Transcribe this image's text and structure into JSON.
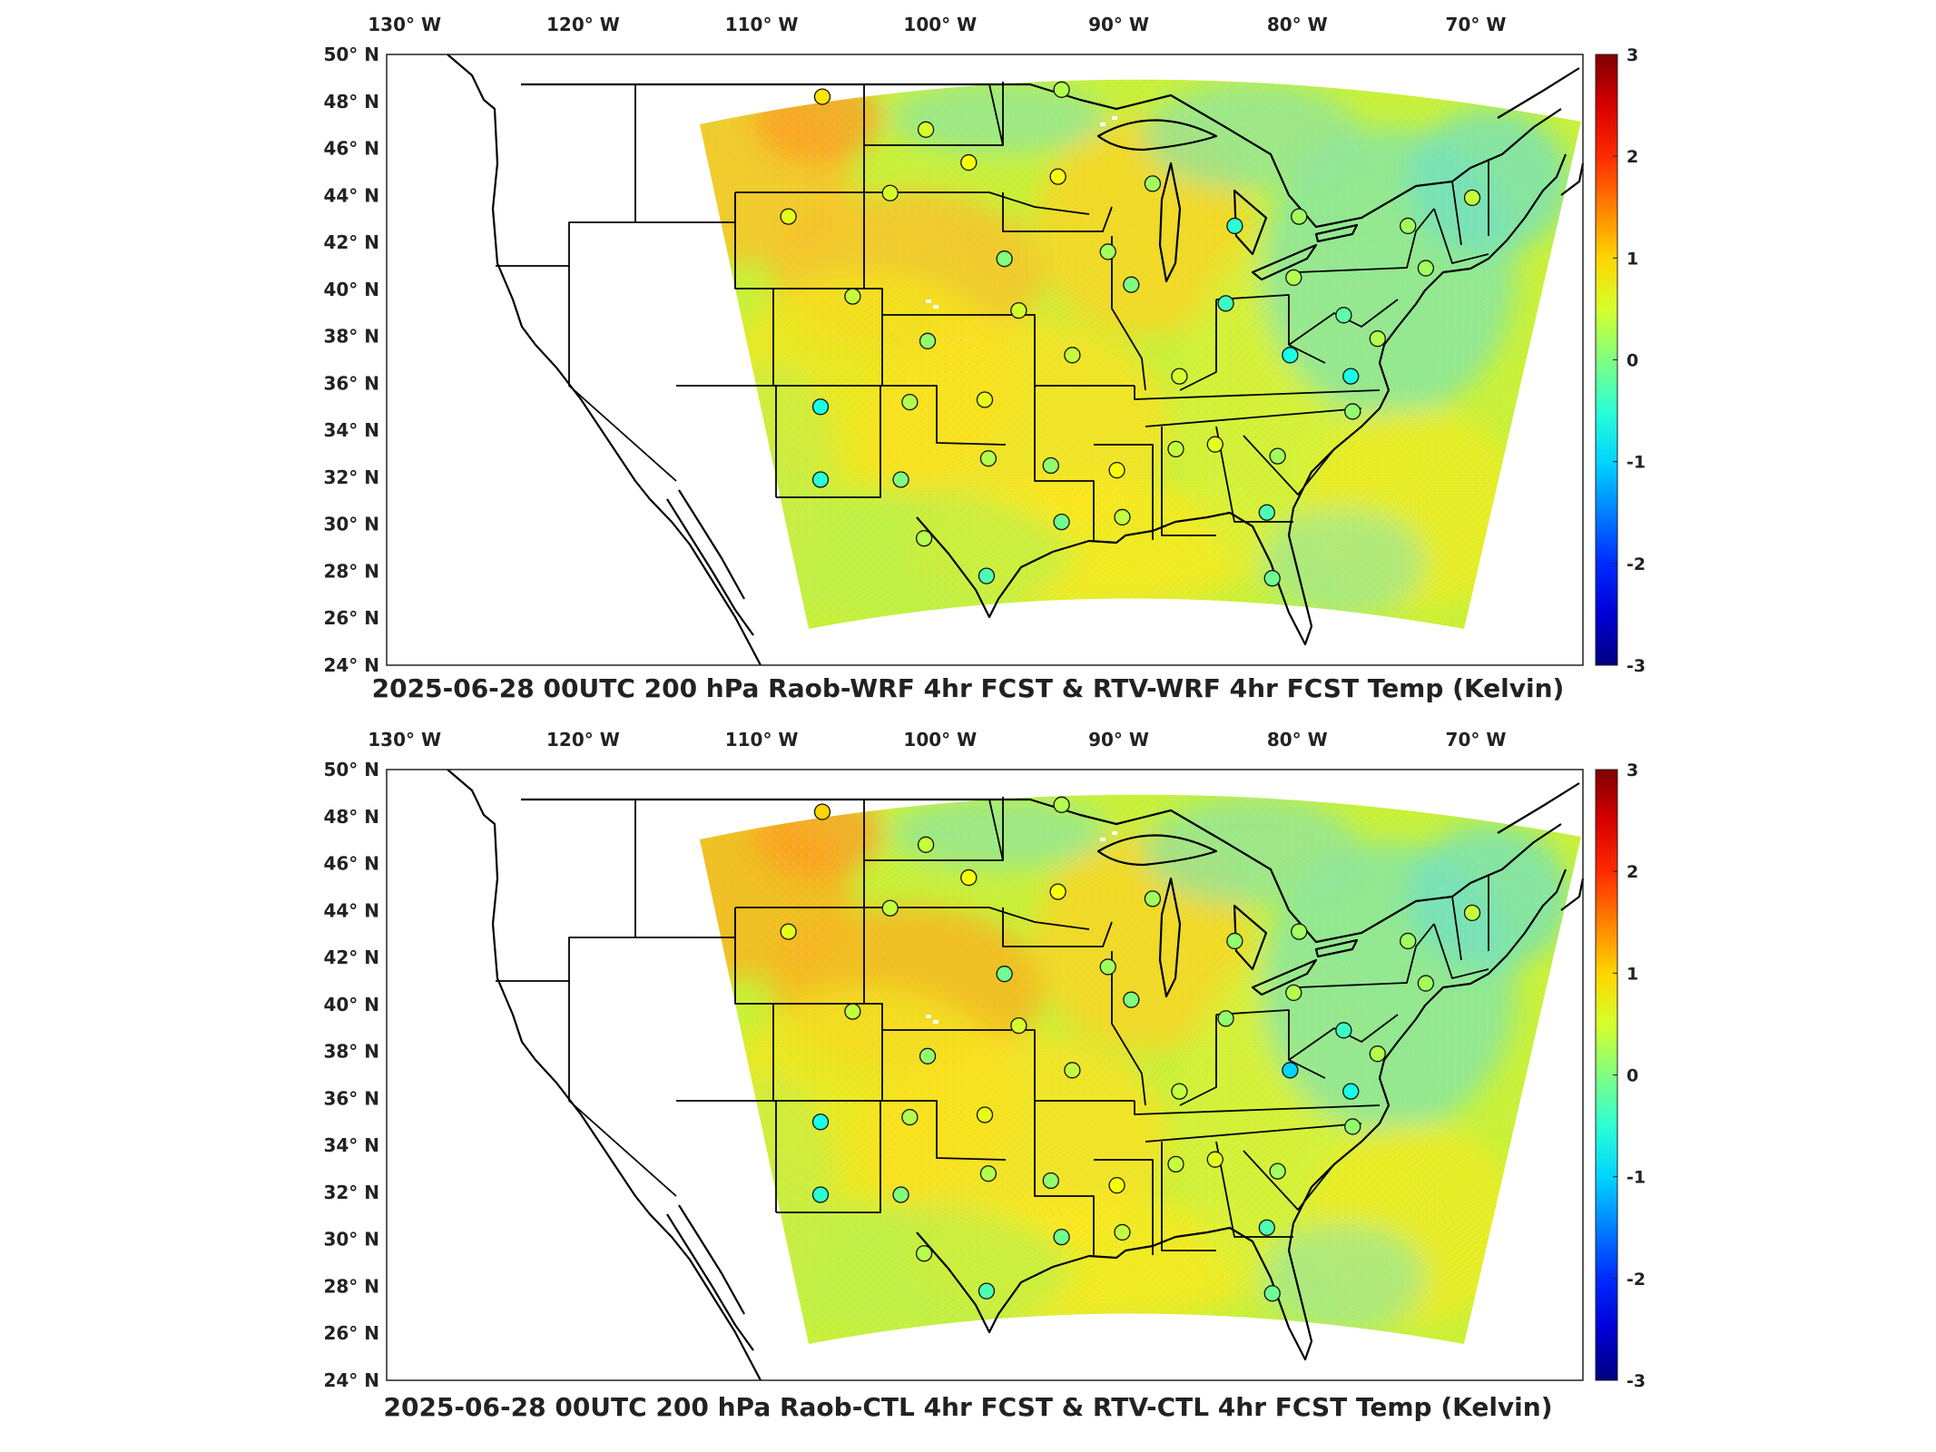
{
  "figure": {
    "panels": [
      {
        "title": "2025-06-28 00UTC 200 hPa Raob-WRF 4hr FCST & RTV-WRF 4hr FCST Temp (Kelvin)"
      },
      {
        "title": "2025-06-28 00UTC 200 hPa Raob-CTL 4hr FCST & RTV-CTL 4hr FCST Temp (Kelvin)"
      }
    ]
  },
  "chart_data": [
    {
      "type": "heatmap",
      "title": "2025-06-28 00UTC 200 hPa Raob-WRF 4hr FCST & RTV-WRF 4hr FCST Temp (Kelvin)",
      "x_ticks": [
        "130° W",
        "120° W",
        "110° W",
        "100° W",
        "90° W",
        "80° W",
        "70° W"
      ],
      "y_ticks": [
        "24° N",
        "26° N",
        "28° N",
        "30° N",
        "32° N",
        "34° N",
        "36° N",
        "38° N",
        "40° N",
        "42° N",
        "44° N",
        "46° N",
        "48° N",
        "50° N"
      ],
      "xlim": [
        -131,
        -64
      ],
      "ylim": [
        24,
        50
      ],
      "colorbar": {
        "ticks": [
          "-3",
          "-2",
          "-1",
          "0",
          "1",
          "2",
          "3"
        ],
        "range": [
          -3,
          3
        ],
        "colormap": "jet"
      },
      "background_field": "RTV - WRF 4hr FCST temperature difference (K), mostly 0 to +1",
      "raob_stations": [
        {
          "lon": -106.6,
          "lat": 48.2,
          "value": 0.9
        },
        {
          "lon": -100.8,
          "lat": 46.8,
          "value": 0.5
        },
        {
          "lon": -98.4,
          "lat": 45.4,
          "value": 0.7
        },
        {
          "lon": -93.4,
          "lat": 44.8,
          "value": 0.7
        },
        {
          "lon": -93.2,
          "lat": 48.5,
          "value": 0.3
        },
        {
          "lon": -102.8,
          "lat": 44.1,
          "value": 0.5
        },
        {
          "lon": -108.5,
          "lat": 43.1,
          "value": 0.6
        },
        {
          "lon": -96.4,
          "lat": 41.3,
          "value": 0.0
        },
        {
          "lon": -90.6,
          "lat": 41.6,
          "value": 0.2
        },
        {
          "lon": -89.3,
          "lat": 40.2,
          "value": 0.0
        },
        {
          "lon": -88.1,
          "lat": 44.5,
          "value": 0.2
        },
        {
          "lon": -83.5,
          "lat": 42.7,
          "value": -0.5
        },
        {
          "lon": -79.9,
          "lat": 43.1,
          "value": 0.2
        },
        {
          "lon": -73.8,
          "lat": 42.7,
          "value": 0.2
        },
        {
          "lon": -70.2,
          "lat": 43.9,
          "value": 0.4
        },
        {
          "lon": -72.8,
          "lat": 40.9,
          "value": 0.2
        },
        {
          "lon": -80.2,
          "lat": 40.5,
          "value": 0.3
        },
        {
          "lon": -84.0,
          "lat": 39.4,
          "value": -0.4
        },
        {
          "lon": -77.4,
          "lat": 38.9,
          "value": -0.2
        },
        {
          "lon": -75.5,
          "lat": 37.9,
          "value": 0.3
        },
        {
          "lon": -80.4,
          "lat": 37.2,
          "value": -0.6
        },
        {
          "lon": -77.0,
          "lat": 36.3,
          "value": -0.6
        },
        {
          "lon": -76.9,
          "lat": 34.8,
          "value": 0.1
        },
        {
          "lon": -86.6,
          "lat": 36.3,
          "value": 0.5
        },
        {
          "lon": -86.8,
          "lat": 33.2,
          "value": 0.4
        },
        {
          "lon": -84.6,
          "lat": 33.4,
          "value": 0.6
        },
        {
          "lon": -81.1,
          "lat": 32.9,
          "value": 0.2
        },
        {
          "lon": -81.7,
          "lat": 30.5,
          "value": -0.3
        },
        {
          "lon": -81.4,
          "lat": 27.7,
          "value": -0.1
        },
        {
          "lon": -89.8,
          "lat": 30.3,
          "value": 0.4
        },
        {
          "lon": -90.1,
          "lat": 32.3,
          "value": 0.7
        },
        {
          "lon": -93.8,
          "lat": 32.5,
          "value": 0.1
        },
        {
          "lon": -93.2,
          "lat": 30.1,
          "value": -0.1
        },
        {
          "lon": -92.6,
          "lat": 37.2,
          "value": 0.4
        },
        {
          "lon": -95.6,
          "lat": 39.1,
          "value": 0.5
        },
        {
          "lon": -100.7,
          "lat": 37.8,
          "value": 0.1
        },
        {
          "lon": -104.9,
          "lat": 39.7,
          "value": 0.4
        },
        {
          "lon": -97.5,
          "lat": 35.3,
          "value": 0.6
        },
        {
          "lon": -101.7,
          "lat": 35.2,
          "value": 0.3
        },
        {
          "lon": -106.7,
          "lat": 35.0,
          "value": -0.6
        },
        {
          "lon": -97.3,
          "lat": 32.8,
          "value": 0.3
        },
        {
          "lon": -102.2,
          "lat": 31.9,
          "value": 0.0
        },
        {
          "lon": -106.7,
          "lat": 31.9,
          "value": -0.5
        },
        {
          "lon": -100.9,
          "lat": 29.4,
          "value": 0.3
        },
        {
          "lon": -97.4,
          "lat": 27.8,
          "value": -0.3
        }
      ]
    },
    {
      "type": "heatmap",
      "title": "2025-06-28 00UTC 200 hPa Raob-CTL 4hr FCST & RTV-CTL 4hr FCST Temp (Kelvin)",
      "x_ticks": [
        "130° W",
        "120° W",
        "110° W",
        "100° W",
        "90° W",
        "80° W",
        "70° W"
      ],
      "y_ticks": [
        "24° N",
        "26° N",
        "28° N",
        "30° N",
        "32° N",
        "34° N",
        "36° N",
        "38° N",
        "40° N",
        "42° N",
        "44° N",
        "46° N",
        "48° N",
        "50° N"
      ],
      "xlim": [
        -131,
        -64
      ],
      "ylim": [
        24,
        50
      ],
      "colorbar": {
        "ticks": [
          "-3",
          "-2",
          "-1",
          "0",
          "1",
          "2",
          "3"
        ],
        "range": [
          -3,
          3
        ],
        "colormap": "jet"
      },
      "background_field": "RTV - CTL 4hr FCST temperature difference (K), mostly 0 to +1.2",
      "raob_stations": [
        {
          "lon": -106.6,
          "lat": 48.2,
          "value": 1.0
        },
        {
          "lon": -100.8,
          "lat": 46.8,
          "value": 0.4
        },
        {
          "lon": -98.4,
          "lat": 45.4,
          "value": 0.7
        },
        {
          "lon": -93.4,
          "lat": 44.8,
          "value": 0.7
        },
        {
          "lon": -93.2,
          "lat": 48.5,
          "value": 0.3
        },
        {
          "lon": -102.8,
          "lat": 44.1,
          "value": 0.4
        },
        {
          "lon": -108.5,
          "lat": 43.1,
          "value": 0.6
        },
        {
          "lon": -96.4,
          "lat": 41.3,
          "value": -0.1
        },
        {
          "lon": -90.6,
          "lat": 41.6,
          "value": 0.2
        },
        {
          "lon": -89.3,
          "lat": 40.2,
          "value": 0.0
        },
        {
          "lon": -88.1,
          "lat": 44.5,
          "value": 0.2
        },
        {
          "lon": -83.5,
          "lat": 42.7,
          "value": 0.1
        },
        {
          "lon": -79.9,
          "lat": 43.1,
          "value": 0.2
        },
        {
          "lon": -73.8,
          "lat": 42.7,
          "value": 0.2
        },
        {
          "lon": -70.2,
          "lat": 43.9,
          "value": 0.4
        },
        {
          "lon": -72.8,
          "lat": 40.9,
          "value": 0.2
        },
        {
          "lon": -80.2,
          "lat": 40.5,
          "value": 0.3
        },
        {
          "lon": -84.0,
          "lat": 39.4,
          "value": 0.1
        },
        {
          "lon": -77.4,
          "lat": 38.9,
          "value": -0.4
        },
        {
          "lon": -75.5,
          "lat": 37.9,
          "value": 0.3
        },
        {
          "lon": -80.4,
          "lat": 37.2,
          "value": -1.0
        },
        {
          "lon": -77.0,
          "lat": 36.3,
          "value": -0.6
        },
        {
          "lon": -76.9,
          "lat": 34.8,
          "value": 0.1
        },
        {
          "lon": -86.6,
          "lat": 36.3,
          "value": 0.4
        },
        {
          "lon": -86.8,
          "lat": 33.2,
          "value": 0.4
        },
        {
          "lon": -84.6,
          "lat": 33.4,
          "value": 0.6
        },
        {
          "lon": -81.1,
          "lat": 32.9,
          "value": 0.2
        },
        {
          "lon": -81.7,
          "lat": 30.5,
          "value": -0.3
        },
        {
          "lon": -81.4,
          "lat": 27.7,
          "value": -0.1
        },
        {
          "lon": -89.8,
          "lat": 30.3,
          "value": 0.4
        },
        {
          "lon": -90.1,
          "lat": 32.3,
          "value": 0.7
        },
        {
          "lon": -93.8,
          "lat": 32.5,
          "value": 0.1
        },
        {
          "lon": -93.2,
          "lat": 30.1,
          "value": -0.1
        },
        {
          "lon": -92.6,
          "lat": 37.2,
          "value": 0.4
        },
        {
          "lon": -95.6,
          "lat": 39.1,
          "value": 0.5
        },
        {
          "lon": -100.7,
          "lat": 37.8,
          "value": 0.1
        },
        {
          "lon": -104.9,
          "lat": 39.7,
          "value": 0.4
        },
        {
          "lon": -97.5,
          "lat": 35.3,
          "value": 0.6
        },
        {
          "lon": -101.7,
          "lat": 35.2,
          "value": 0.3
        },
        {
          "lon": -106.7,
          "lat": 35.0,
          "value": -0.6
        },
        {
          "lon": -97.3,
          "lat": 32.8,
          "value": 0.3
        },
        {
          "lon": -102.2,
          "lat": 31.9,
          "value": 0.0
        },
        {
          "lon": -106.7,
          "lat": 31.9,
          "value": -0.5
        },
        {
          "lon": -100.9,
          "lat": 29.4,
          "value": 0.3
        },
        {
          "lon": -97.4,
          "lat": 27.8,
          "value": -0.3
        }
      ]
    }
  ]
}
